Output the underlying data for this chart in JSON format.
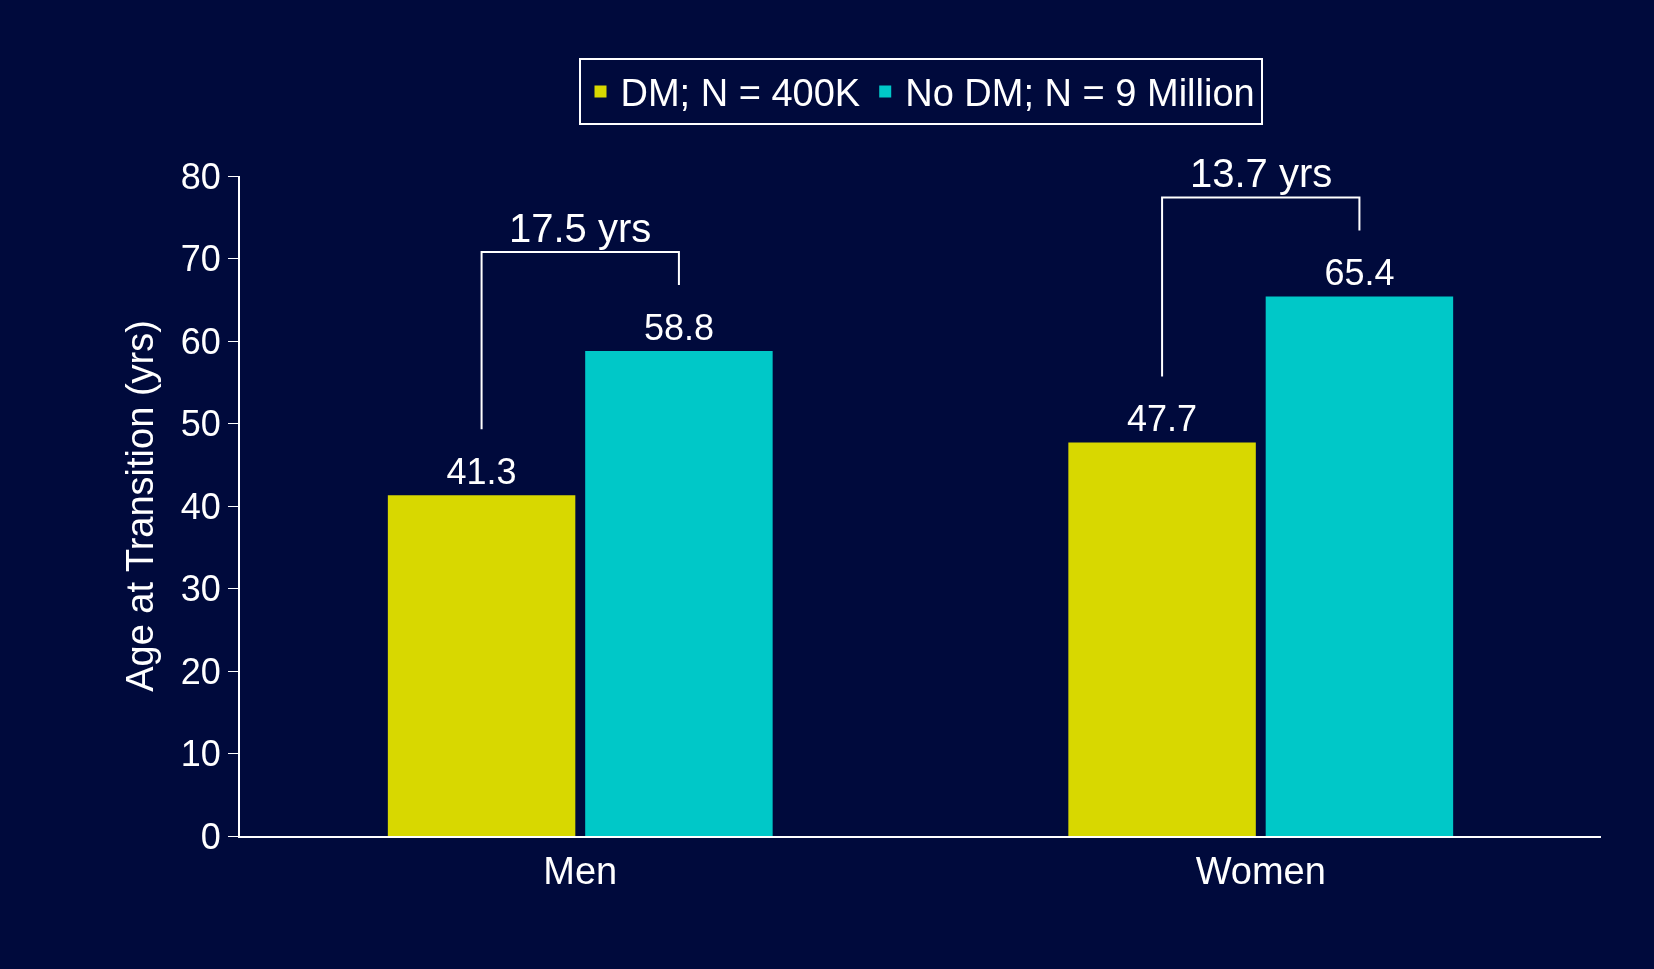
{
  "chart_data": {
    "type": "bar",
    "categories": [
      "Men",
      "Women"
    ],
    "series": [
      {
        "name": "DM; N = 400K",
        "color": "#d8d800",
        "values": [
          41.3,
          47.7
        ]
      },
      {
        "name": "No DM; N = 9 Million",
        "color": "#00c8c8",
        "values": [
          58.8,
          65.4
        ]
      }
    ],
    "ylabel": "Age at Transition (yrs)",
    "ylim": [
      0,
      80
    ],
    "yticks": [
      0,
      10,
      20,
      30,
      40,
      50,
      60,
      70,
      80
    ],
    "annotations": [
      "17.5 yrs",
      "13.7 yrs"
    ],
    "data_labels": true,
    "grid": false,
    "legend": "top"
  }
}
